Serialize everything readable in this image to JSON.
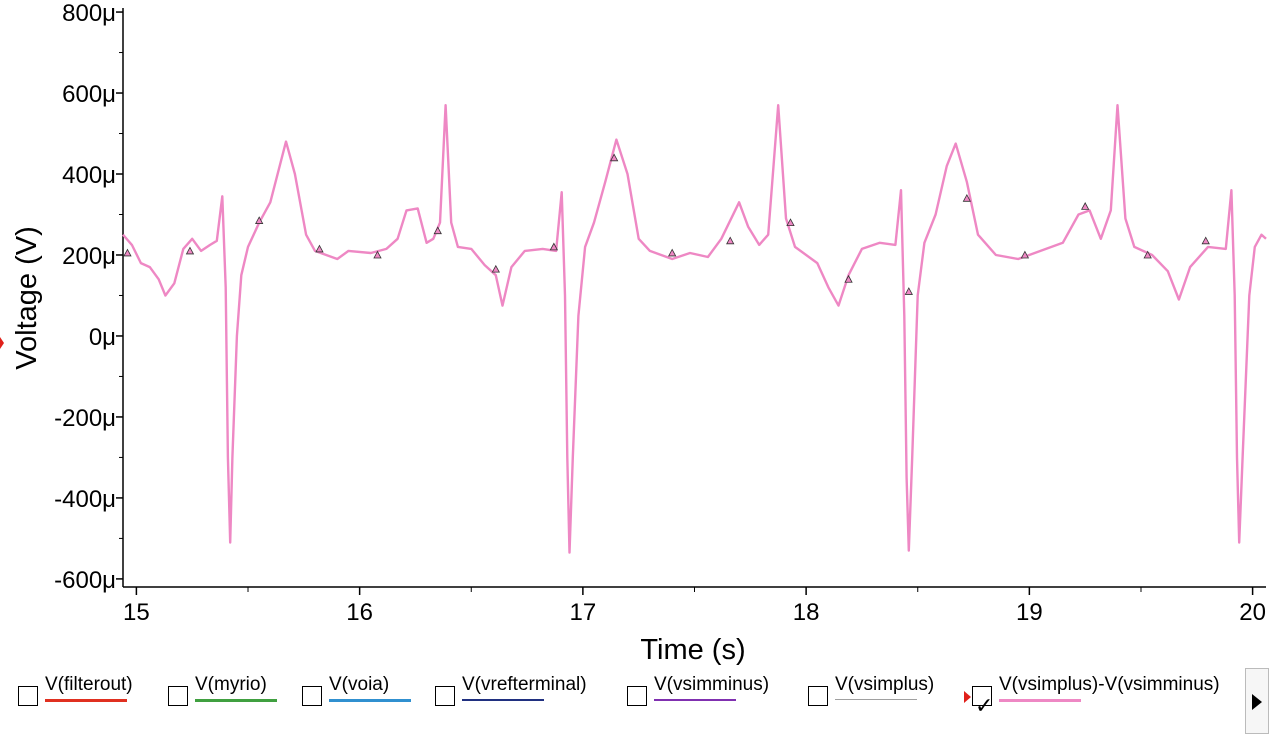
{
  "chart_data": {
    "type": "line",
    "xlabel": "Time (s)",
    "ylabel": "Voltage (V)",
    "xlim": [
      14.94,
      20.06
    ],
    "ylim": [
      -0.00062,
      0.00081
    ],
    "x_ticks": [
      15,
      16,
      17,
      18,
      19,
      20
    ],
    "x_tick_labels": [
      "15",
      "16",
      "17",
      "18",
      "19",
      "20"
    ],
    "y_ticks": [
      0.0008,
      0.0006,
      0.0004,
      0.0002,
      0,
      -0.0002,
      -0.0004,
      -0.0006
    ],
    "y_tick_labels": [
      "800μ",
      "600μ",
      "400μ",
      "200μ",
      "0μ",
      "-200μ",
      "-400μ",
      "-600μ"
    ],
    "grid": false,
    "series": [
      {
        "name": "V(vsimplus)-V(vsimminus)",
        "color": "#ee88c4",
        "points": [
          [
            14.94,
            0.00025
          ],
          [
            14.98,
            0.000225
          ],
          [
            15.02,
            0.00018
          ],
          [
            15.06,
            0.00017
          ],
          [
            15.1,
            0.00014
          ],
          [
            15.13,
            0.0001
          ],
          [
            15.17,
            0.00013
          ],
          [
            15.21,
            0.000215
          ],
          [
            15.25,
            0.00024
          ],
          [
            15.29,
            0.00021
          ],
          [
            15.33,
            0.000225
          ],
          [
            15.36,
            0.000235
          ],
          [
            15.385,
            0.000345
          ],
          [
            15.4,
            0.00012
          ],
          [
            15.41,
            -0.0003
          ],
          [
            15.42,
            -0.00051
          ],
          [
            15.43,
            -0.0003
          ],
          [
            15.45,
            0.0
          ],
          [
            15.47,
            0.00015
          ],
          [
            15.5,
            0.00022
          ],
          [
            15.55,
            0.00028
          ],
          [
            15.6,
            0.00033
          ],
          [
            15.67,
            0.00048
          ],
          [
            15.71,
            0.0004
          ],
          [
            15.76,
            0.00025
          ],
          [
            15.8,
            0.00021
          ],
          [
            15.85,
            0.0002
          ],
          [
            15.9,
            0.00019
          ],
          [
            15.95,
            0.00021
          ],
          [
            16.05,
            0.000205
          ],
          [
            16.12,
            0.000215
          ],
          [
            16.17,
            0.00024
          ],
          [
            16.21,
            0.00031
          ],
          [
            16.26,
            0.000315
          ],
          [
            16.3,
            0.00023
          ],
          [
            16.33,
            0.00024
          ],
          [
            16.36,
            0.00028
          ],
          [
            16.385,
            0.00057
          ],
          [
            16.41,
            0.00028
          ],
          [
            16.44,
            0.00022
          ],
          [
            16.5,
            0.000215
          ],
          [
            16.56,
            0.000175
          ],
          [
            16.61,
            0.00015
          ],
          [
            16.64,
            7.5e-05
          ],
          [
            16.68,
            0.00017
          ],
          [
            16.74,
            0.00021
          ],
          [
            16.82,
            0.000215
          ],
          [
            16.88,
            0.00021
          ],
          [
            16.905,
            0.000355
          ],
          [
            16.92,
            0.0001
          ],
          [
            16.93,
            -0.0003
          ],
          [
            16.94,
            -0.000535
          ],
          [
            16.955,
            -0.0003
          ],
          [
            16.98,
            5e-05
          ],
          [
            17.01,
            0.00022
          ],
          [
            17.05,
            0.00028
          ],
          [
            17.1,
            0.00038
          ],
          [
            17.15,
            0.000485
          ],
          [
            17.2,
            0.0004
          ],
          [
            17.25,
            0.00024
          ],
          [
            17.3,
            0.00021
          ],
          [
            17.4,
            0.00019
          ],
          [
            17.48,
            0.000205
          ],
          [
            17.56,
            0.000195
          ],
          [
            17.62,
            0.00024
          ],
          [
            17.7,
            0.00033
          ],
          [
            17.74,
            0.00027
          ],
          [
            17.79,
            0.000225
          ],
          [
            17.83,
            0.00025
          ],
          [
            17.875,
            0.00057
          ],
          [
            17.91,
            0.00029
          ],
          [
            17.95,
            0.00022
          ],
          [
            18.05,
            0.00018
          ],
          [
            18.1,
            0.00012
          ],
          [
            18.145,
            7.5e-05
          ],
          [
            18.19,
            0.00015
          ],
          [
            18.25,
            0.000215
          ],
          [
            18.33,
            0.00023
          ],
          [
            18.4,
            0.000225
          ],
          [
            18.425,
            0.00036
          ],
          [
            18.44,
            5e-05
          ],
          [
            18.45,
            -0.00035
          ],
          [
            18.46,
            -0.00053
          ],
          [
            18.475,
            -0.0003
          ],
          [
            18.5,
            0.0001
          ],
          [
            18.53,
            0.00023
          ],
          [
            18.58,
            0.0003
          ],
          [
            18.63,
            0.00042
          ],
          [
            18.67,
            0.000475
          ],
          [
            18.72,
            0.00038
          ],
          [
            18.77,
            0.00025
          ],
          [
            18.85,
            0.0002
          ],
          [
            18.95,
            0.00019
          ],
          [
            19.05,
            0.00021
          ],
          [
            19.15,
            0.00023
          ],
          [
            19.22,
            0.0003
          ],
          [
            19.27,
            0.00031
          ],
          [
            19.32,
            0.00024
          ],
          [
            19.365,
            0.00031
          ],
          [
            19.395,
            0.00057
          ],
          [
            19.43,
            0.00029
          ],
          [
            19.47,
            0.00022
          ],
          [
            19.55,
            0.0002
          ],
          [
            19.62,
            0.00016
          ],
          [
            19.67,
            9e-05
          ],
          [
            19.72,
            0.00017
          ],
          [
            19.8,
            0.00022
          ],
          [
            19.88,
            0.000215
          ],
          [
            19.905,
            0.00036
          ],
          [
            19.92,
            0.0001
          ],
          [
            19.93,
            -0.0003
          ],
          [
            19.94,
            -0.00051
          ],
          [
            19.955,
            -0.0003
          ],
          [
            19.985,
            0.0001
          ],
          [
            20.01,
            0.00022
          ],
          [
            20.04,
            0.00025
          ],
          [
            20.06,
            0.00024
          ]
        ],
        "markers": [
          [
            14.96,
            0.000205
          ],
          [
            15.24,
            0.00021
          ],
          [
            15.55,
            0.000285
          ],
          [
            15.82,
            0.000215
          ],
          [
            16.08,
            0.0002
          ],
          [
            16.35,
            0.00026
          ],
          [
            16.61,
            0.000165
          ],
          [
            16.87,
            0.00022
          ],
          [
            17.14,
            0.00044
          ],
          [
            17.4,
            0.000205
          ],
          [
            17.66,
            0.000235
          ],
          [
            17.93,
            0.00028
          ],
          [
            18.19,
            0.00014
          ],
          [
            18.46,
            0.00011
          ],
          [
            18.72,
            0.00034
          ],
          [
            18.98,
            0.0002
          ],
          [
            19.25,
            0.00032
          ],
          [
            19.53,
            0.0002
          ],
          [
            19.79,
            0.000235
          ]
        ]
      }
    ]
  },
  "legend": {
    "items": [
      {
        "label": "V(filterout)",
        "color": "#e03020",
        "checked": false
      },
      {
        "label": "V(myrio)",
        "color": "#40a040",
        "checked": false
      },
      {
        "label": "V(voia)",
        "color": "#3090d0",
        "checked": false
      },
      {
        "label": "V(vrefterminal)",
        "color": "#203080",
        "checked": false
      },
      {
        "label": "V(vsimminus)",
        "color": "#8030b0",
        "checked": false
      },
      {
        "label": "V(vsimplus)",
        "color": "#a0a0a0",
        "checked": false
      },
      {
        "label": "V(vsimplus)-V(vsimminus)",
        "color": "#ee88c4",
        "checked": true
      }
    ],
    "check_glyph": "✓"
  }
}
